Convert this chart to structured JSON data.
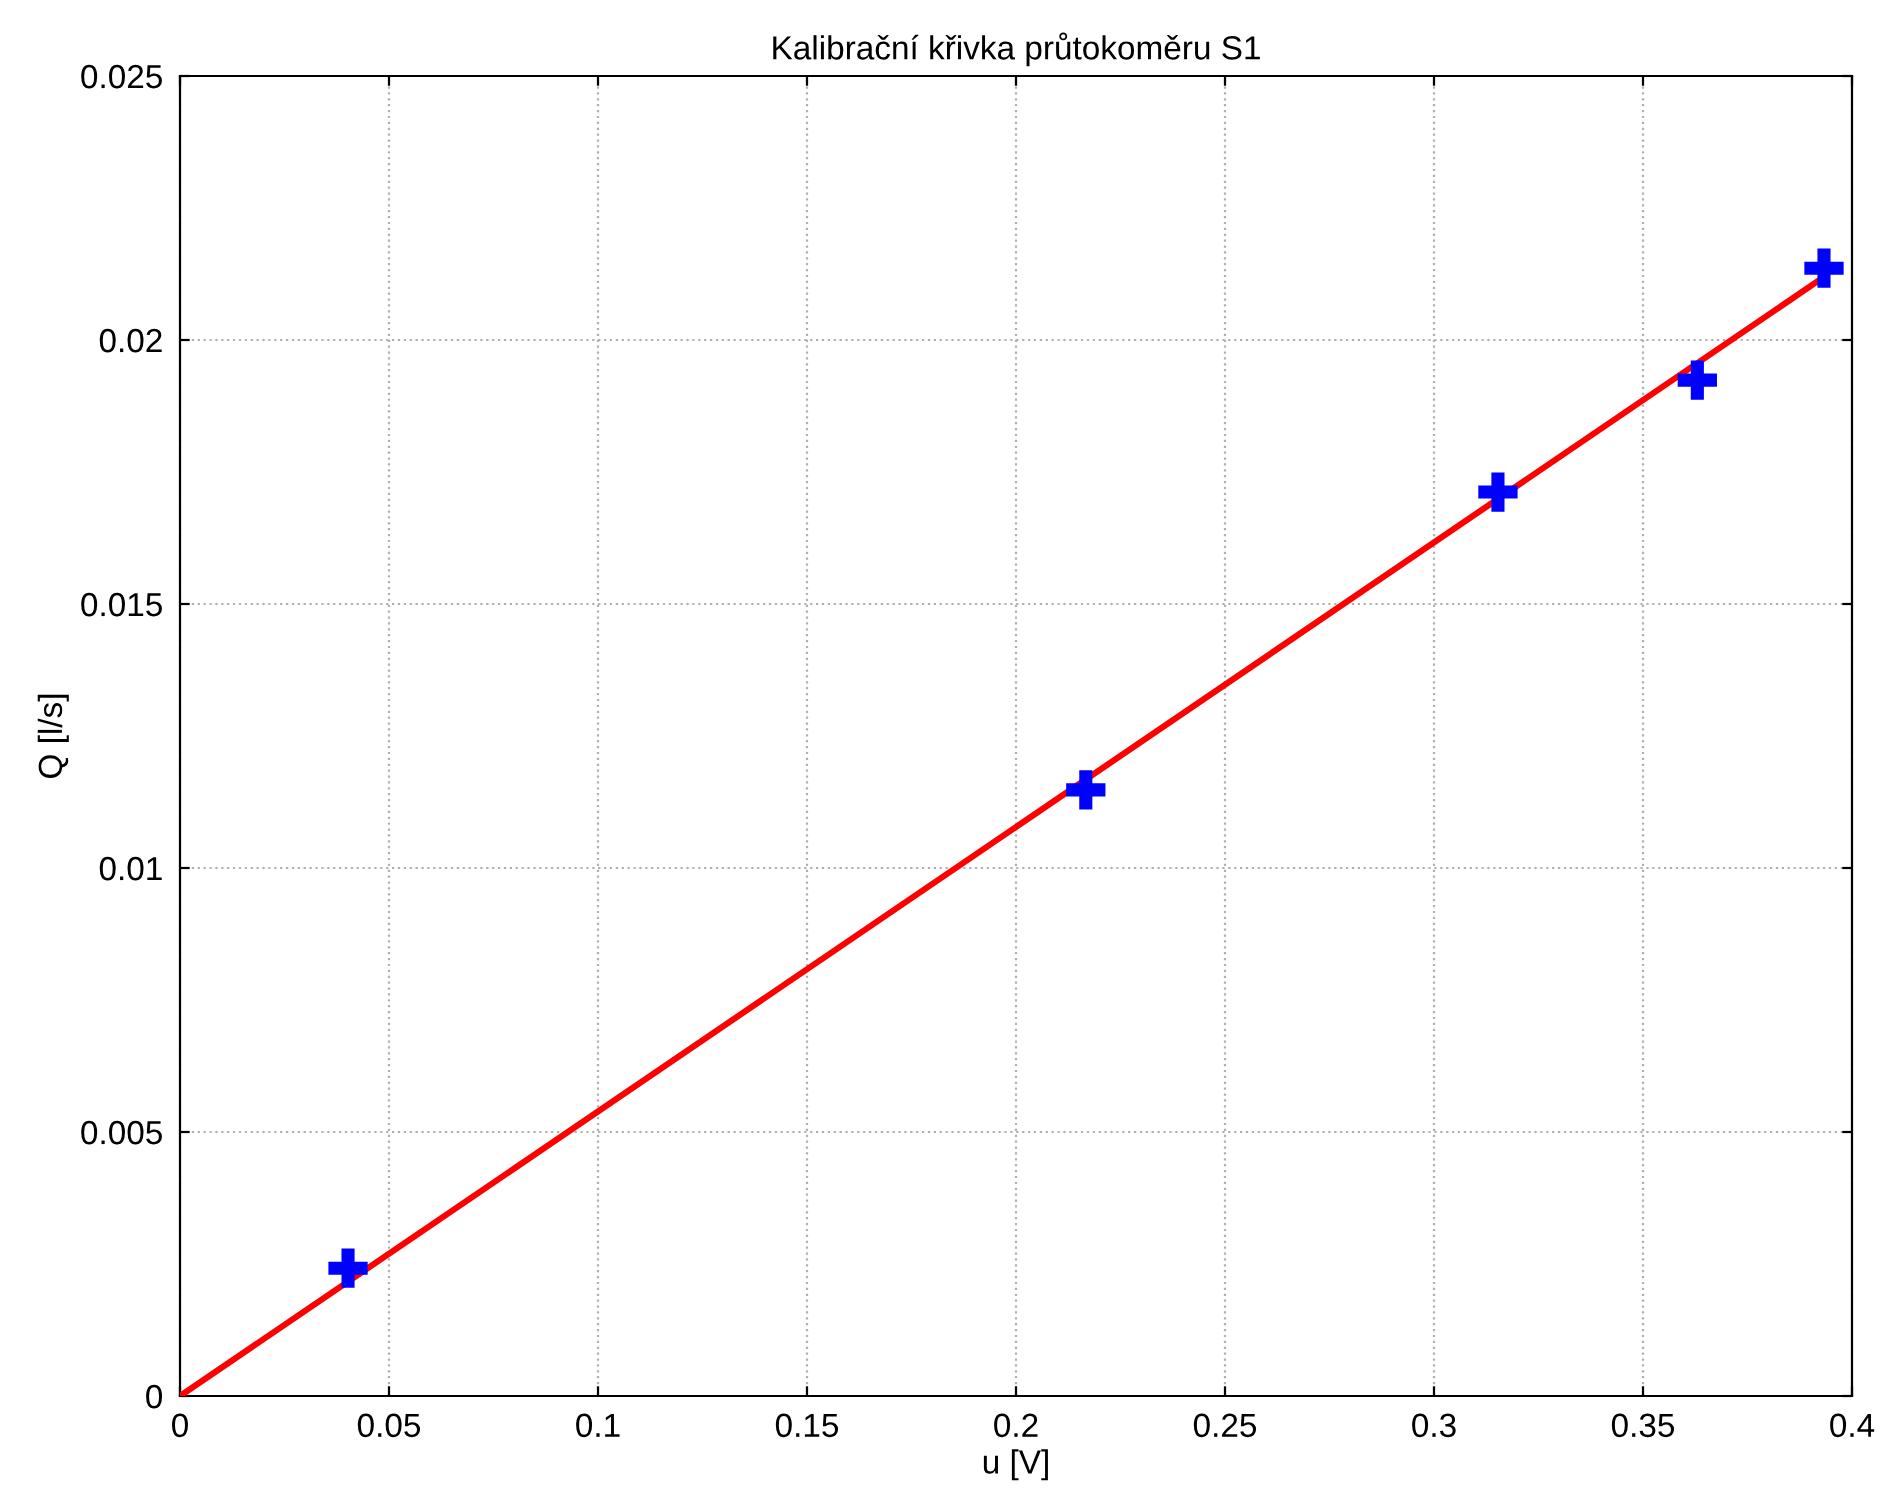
{
  "chart_data": {
    "type": "scatter",
    "title": "Kalibrační křivka průtokoměru S1",
    "xlabel": "u [V]",
    "ylabel": "Q [l/s]",
    "xlim": [
      0,
      0.4
    ],
    "ylim": [
      0,
      0.025
    ],
    "xticks": [
      0,
      0.05,
      0.1,
      0.15,
      0.2,
      0.25,
      0.3,
      0.35,
      0.4
    ],
    "yticks": [
      0,
      0.005,
      0.01,
      0.015,
      0.02,
      0.025
    ],
    "grid": true,
    "series": [
      {
        "color": "#0000ff",
        "marker": "cross",
        "x": [
          0.0402,
          0.2167,
          0.3153,
          0.363,
          0.3933
        ],
        "values": [
          0.00242,
          0.01148,
          0.01712,
          0.01924,
          0.02136
        ]
      },
      {
        "type": "line",
        "color": "#ff0000",
        "x": [
          0,
          0.3923
        ],
        "values": [
          0,
          0.02114
        ],
        "line_style": "solid"
      }
    ]
  }
}
